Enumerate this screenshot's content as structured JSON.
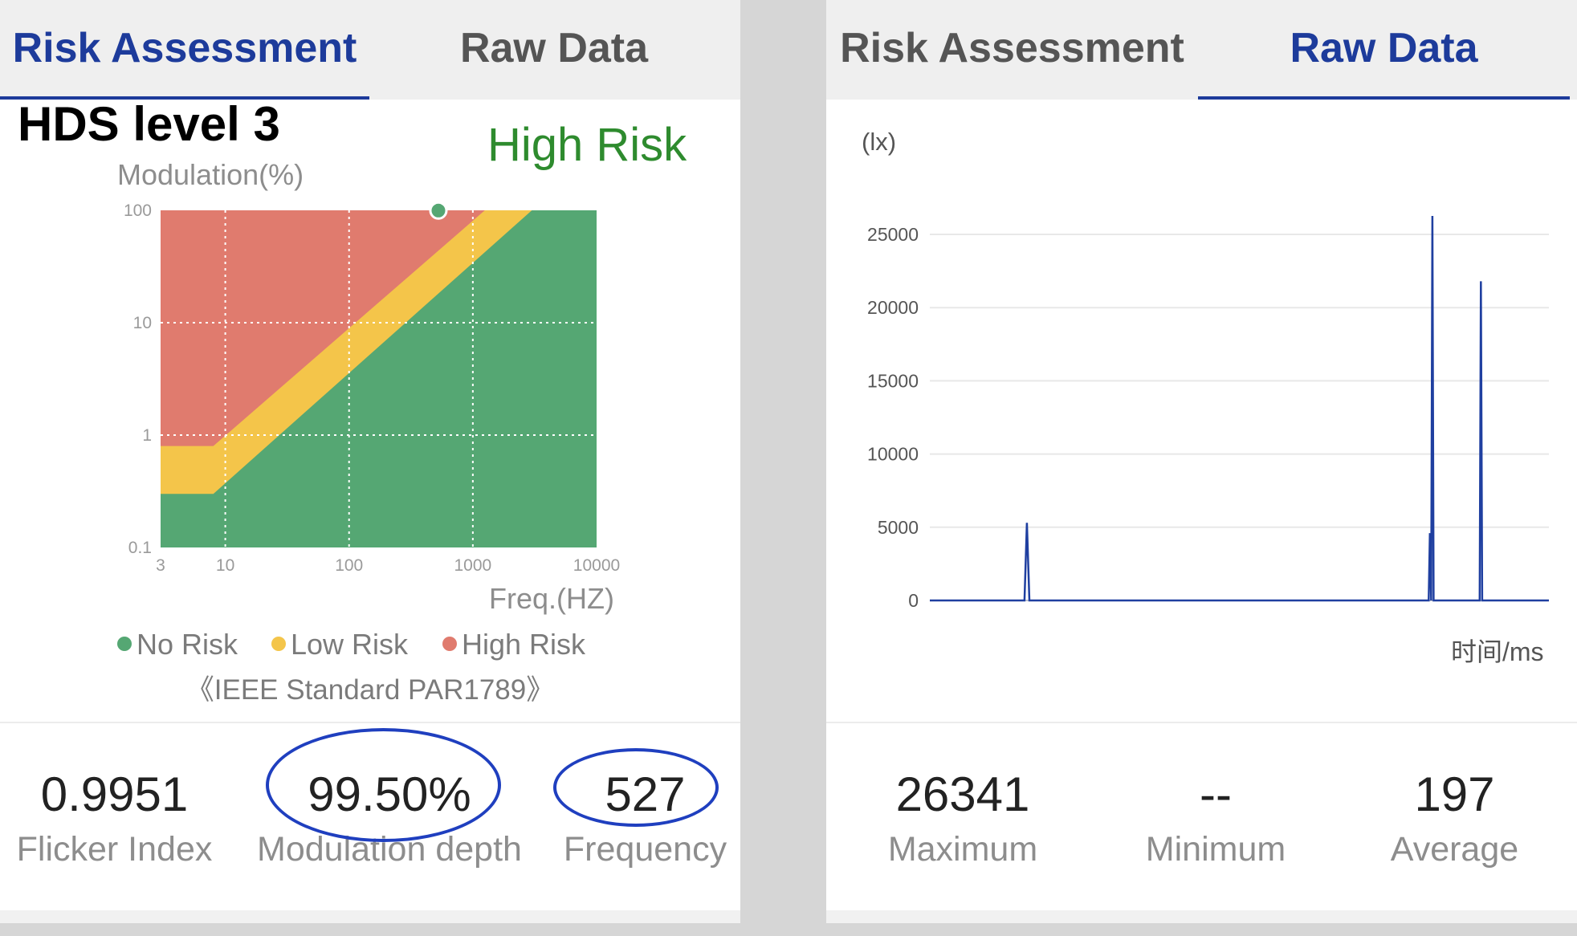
{
  "left": {
    "tabs": [
      {
        "label": "Risk Assessment",
        "active": true
      },
      {
        "label": "Raw Data",
        "active": false
      }
    ],
    "title": "HDS level 3",
    "risk_label": "High Risk",
    "risk_color": "#2e8b2e",
    "ylabel": "Modulation(%)",
    "xlabel": "Freq.(HZ)",
    "legend": [
      {
        "label": "No Risk",
        "color": "#55a773"
      },
      {
        "label": "Low Risk",
        "color": "#f4c54a"
      },
      {
        "label": "High Risk",
        "color": "#e07b6e"
      }
    ],
    "standard": "《IEEE Standard PAR1789》",
    "stats": [
      {
        "value": "0.9951",
        "label": "Flicker Index"
      },
      {
        "value": "99.50%",
        "label": "Modulation depth"
      },
      {
        "value": "527",
        "label": "Frequency"
      }
    ]
  },
  "right": {
    "tabs": [
      {
        "label": "Risk Assessment",
        "active": false
      },
      {
        "label": "Raw Data",
        "active": true
      }
    ],
    "unit_label": "(lx)",
    "xlabel": "时间/ms",
    "stats": [
      {
        "value": "26341",
        "label": "Maximum"
      },
      {
        "value": "--",
        "label": "Minimum"
      },
      {
        "value": "197",
        "label": "Average"
      }
    ]
  },
  "chart_data": [
    {
      "type": "area",
      "title": "",
      "xlabel": "Freq.(HZ)",
      "ylabel": "Modulation(%)",
      "x_scale": "log",
      "y_scale": "log",
      "xlim": [
        3,
        10000
      ],
      "ylim": [
        0.1,
        100
      ],
      "x_ticks": [
        "3",
        "10",
        "100",
        "1000",
        "10000"
      ],
      "y_ticks": [
        "100",
        "10",
        "1",
        "0.1"
      ],
      "grid": true,
      "regions": [
        {
          "name": "No Risk",
          "color": "#55a773"
        },
        {
          "name": "Low Risk",
          "color": "#f4c54a"
        },
        {
          "name": "High Risk",
          "color": "#e07b6e"
        }
      ],
      "no_risk_boundary": [
        [
          3,
          0.3
        ],
        [
          8,
          0.3
        ],
        [
          3000,
          100
        ]
      ],
      "low_risk_boundary": [
        [
          3,
          0.8
        ],
        [
          8,
          0.8
        ],
        [
          1250,
          100
        ]
      ],
      "point": {
        "x": 527,
        "y": 99.5,
        "color": "#55a773"
      },
      "legend_position": "bottom"
    },
    {
      "type": "line",
      "title": "",
      "ylabel": "(lx)",
      "xlabel": "时间/ms",
      "xlim": [
        0,
        25.5
      ],
      "ylim": [
        0,
        25000
      ],
      "x_ticks": [
        0,
        4,
        8,
        12,
        16,
        20,
        24
      ],
      "y_ticks": [
        0,
        5000,
        10000,
        15000,
        20000,
        25000
      ],
      "grid": true,
      "line_color": "#1f3fa0",
      "x": [
        0,
        3.9,
        4.0,
        4.1,
        20.55,
        20.6,
        20.65,
        20.7,
        20.75,
        20.8,
        22.65,
        22.7,
        22.75,
        22.8,
        25.5
      ],
      "y": [
        0,
        0,
        5300,
        0,
        0,
        4600,
        0,
        26341,
        0,
        0,
        0,
        21800,
        0,
        0,
        0
      ]
    }
  ]
}
